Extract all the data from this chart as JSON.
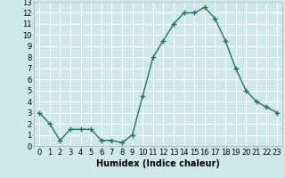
{
  "x": [
    0,
    1,
    2,
    3,
    4,
    5,
    6,
    7,
    8,
    9,
    10,
    11,
    12,
    13,
    14,
    15,
    16,
    17,
    18,
    19,
    20,
    21,
    22,
    23
  ],
  "y": [
    3.0,
    2.0,
    0.5,
    1.5,
    1.5,
    1.5,
    0.5,
    0.5,
    0.3,
    1.0,
    4.5,
    8.0,
    9.5,
    11.0,
    12.0,
    12.0,
    12.5,
    11.5,
    9.5,
    7.0,
    5.0,
    4.0,
    3.5,
    3.0
  ],
  "xlabel": "Humidex (Indice chaleur)",
  "ylim": [
    0,
    13
  ],
  "xlim": [
    -0.5,
    23.5
  ],
  "yticks": [
    0,
    1,
    2,
    3,
    4,
    5,
    6,
    7,
    8,
    9,
    10,
    11,
    12,
    13
  ],
  "xticks": [
    0,
    1,
    2,
    3,
    4,
    5,
    6,
    7,
    8,
    9,
    10,
    11,
    12,
    13,
    14,
    15,
    16,
    17,
    18,
    19,
    20,
    21,
    22,
    23
  ],
  "line_color": "#2d6e63",
  "marker": "+",
  "marker_size": 5,
  "line_width": 1.0,
  "bg_color": "#cce8e8",
  "grid_color": "#ffffff",
  "xlabel_fontsize": 7,
  "tick_fontsize": 6
}
